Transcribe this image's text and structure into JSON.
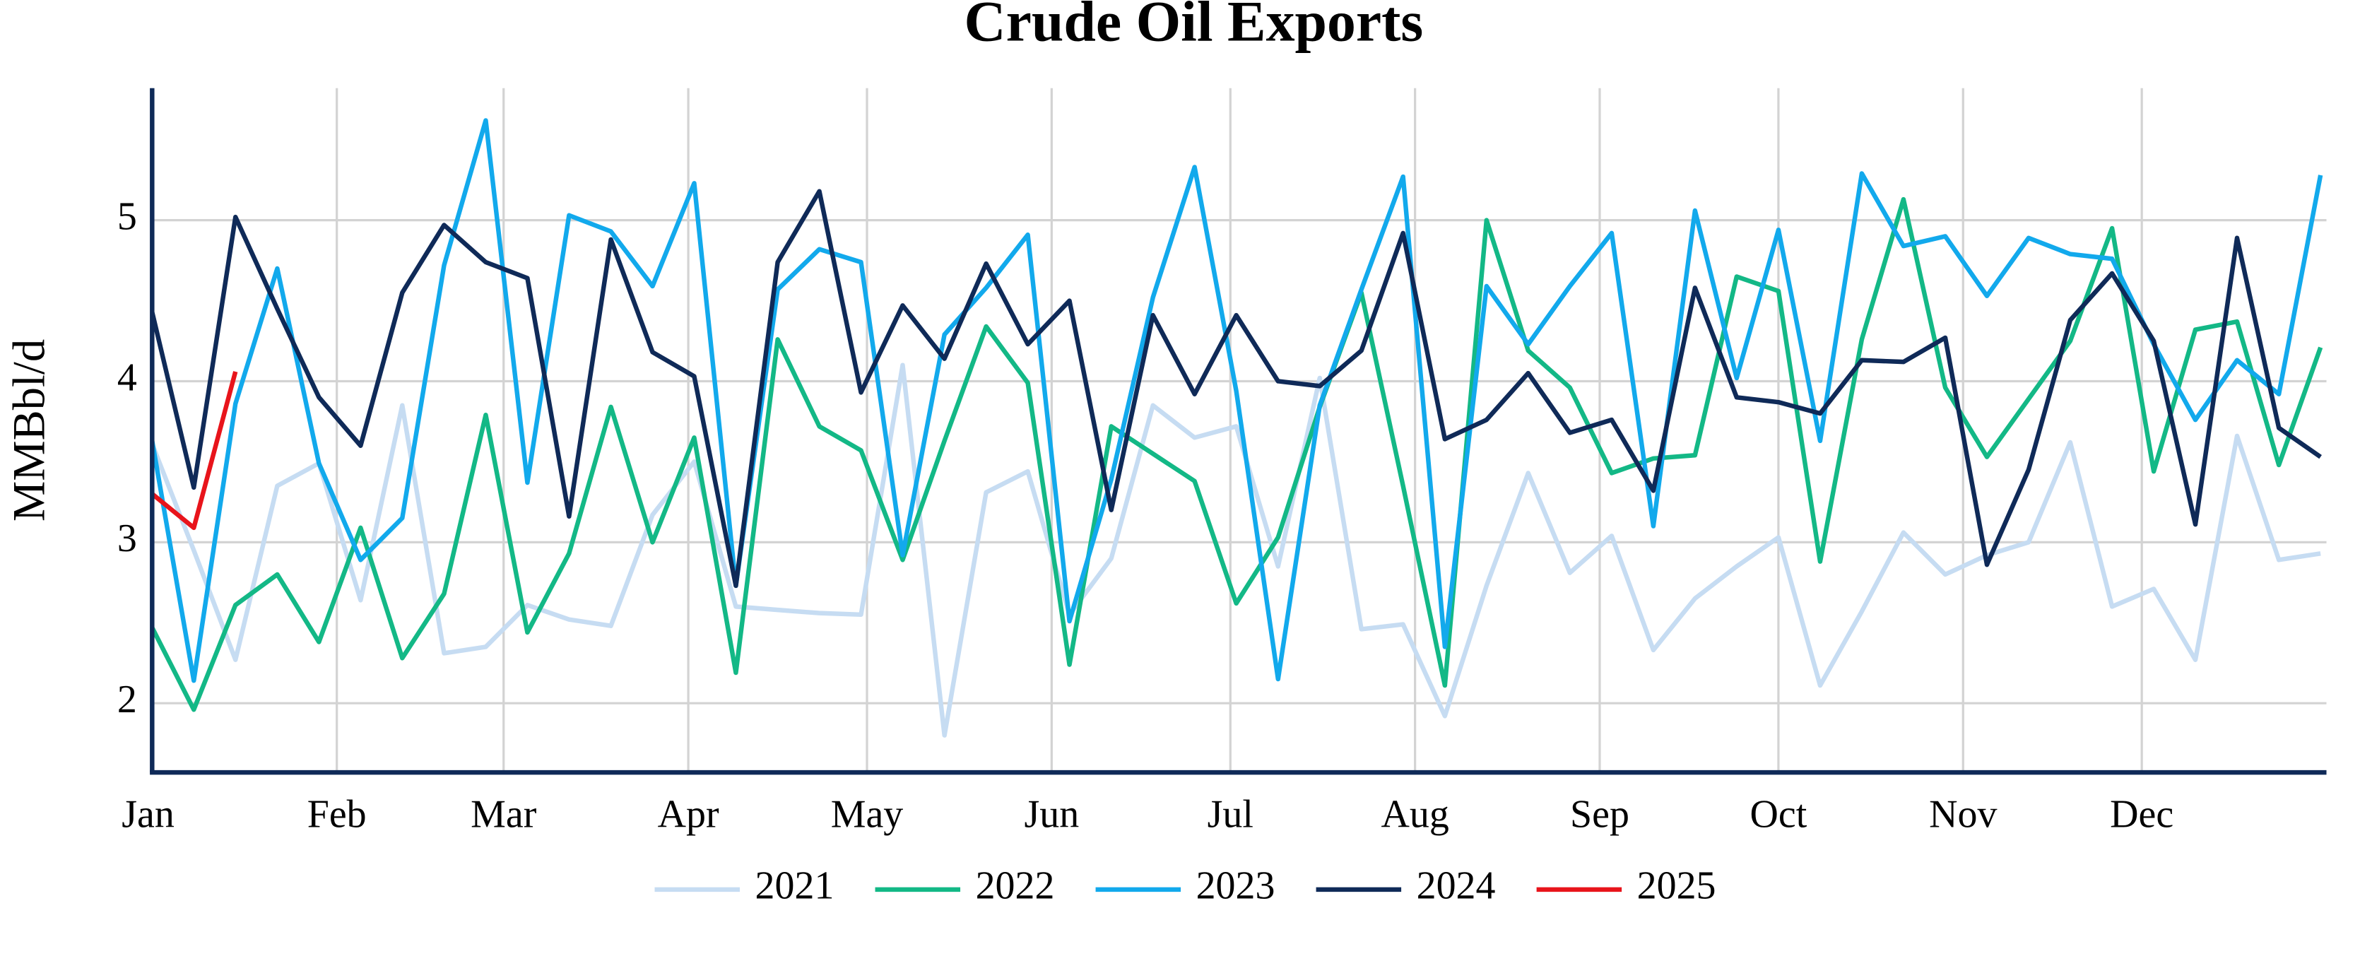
{
  "chart_data": {
    "type": "line",
    "title": "Crude Oil Exports",
    "y_label": "MMBbl/d",
    "x": [
      0,
      7,
      14,
      21,
      28,
      35,
      42,
      49,
      56,
      63,
      70,
      77,
      84,
      91,
      98,
      105,
      112,
      119,
      126,
      133,
      140,
      147,
      154,
      161,
      168,
      175,
      182,
      189,
      196,
      203,
      210,
      217,
      224,
      231,
      238,
      245,
      252,
      259,
      266,
      273,
      280,
      287,
      294,
      301,
      308,
      315,
      322,
      329,
      336,
      343,
      350,
      357,
      364
    ],
    "xlim": [
      0,
      365
    ],
    "xticks": [
      {
        "value": 0,
        "label": "Jan"
      },
      {
        "value": 31,
        "label": "Feb"
      },
      {
        "value": 59,
        "label": "Mar"
      },
      {
        "value": 90,
        "label": "Apr"
      },
      {
        "value": 120,
        "label": "May"
      },
      {
        "value": 151,
        "label": "Jun"
      },
      {
        "value": 181,
        "label": "Jul"
      },
      {
        "value": 212,
        "label": "Aug"
      },
      {
        "value": 243,
        "label": "Sep"
      },
      {
        "value": 273,
        "label": "Oct"
      },
      {
        "value": 304,
        "label": "Nov"
      },
      {
        "value": 334,
        "label": "Dec"
      }
    ],
    "ylim": [
      1.57,
      5.82
    ],
    "yticks": [
      2,
      3,
      4,
      5
    ],
    "grid": true,
    "legend": "bottom",
    "series": [
      {
        "name": "2021",
        "color": "#c6dcf2",
        "values": [
          3.61,
          2.95,
          2.27,
          3.35,
          3.49,
          2.64,
          3.85,
          2.31,
          2.35,
          2.61,
          2.52,
          2.48,
          3.17,
          3.5,
          2.6,
          2.58,
          2.56,
          2.55,
          4.1,
          1.8,
          3.31,
          3.44,
          2.55,
          2.9,
          3.85,
          3.65,
          3.72,
          2.85,
          4.02,
          2.46,
          2.49,
          1.92,
          2.73,
          3.43,
          2.81,
          3.04,
          2.33,
          2.65,
          2.85,
          3.03,
          2.11,
          2.57,
          3.06,
          2.8,
          2.92,
          3.0,
          3.62,
          2.6,
          2.71,
          2.27,
          3.66,
          2.89,
          2.93
        ]
      },
      {
        "name": "2022",
        "color": "#13b886",
        "values": [
          2.47,
          1.96,
          2.61,
          2.8,
          2.38,
          3.09,
          2.28,
          2.68,
          3.79,
          2.44,
          2.93,
          3.84,
          3.0,
          3.65,
          2.19,
          4.26,
          3.72,
          3.57,
          2.89,
          3.63,
          4.34,
          3.99,
          2.24,
          3.72,
          3.55,
          3.38,
          2.62,
          3.03,
          3.84,
          4.55,
          3.35,
          2.11,
          5.0,
          4.19,
          3.96,
          3.43,
          3.52,
          3.54,
          4.65,
          4.56,
          2.88,
          4.26,
          5.13,
          3.96,
          3.53,
          3.89,
          4.25,
          4.95,
          3.44,
          4.32,
          4.37,
          3.48,
          4.21
        ]
      },
      {
        "name": "2023",
        "color": "#12a9ec",
        "values": [
          3.63,
          2.14,
          3.86,
          4.7,
          3.49,
          2.89,
          3.15,
          4.72,
          5.62,
          3.37,
          5.03,
          4.93,
          4.59,
          5.23,
          2.73,
          4.57,
          4.82,
          4.74,
          2.92,
          4.29,
          4.58,
          4.91,
          2.51,
          3.39,
          4.52,
          5.33,
          3.94,
          2.15,
          3.85,
          4.57,
          5.27,
          2.35,
          4.59,
          4.23,
          4.59,
          4.92,
          3.1,
          5.06,
          4.02,
          4.94,
          3.63,
          5.29,
          4.84,
          4.9,
          4.53,
          4.89,
          4.79,
          4.76,
          4.23,
          3.76,
          4.13,
          3.92,
          5.28
        ]
      },
      {
        "name": "2024",
        "color": "#0f2a58",
        "values": [
          4.43,
          3.34,
          5.02,
          4.45,
          3.9,
          3.6,
          4.55,
          4.97,
          4.74,
          4.64,
          3.16,
          4.88,
          4.18,
          4.03,
          2.73,
          4.74,
          5.18,
          3.93,
          4.47,
          4.14,
          4.73,
          4.23,
          4.5,
          3.2,
          4.41,
          3.92,
          4.41,
          4.0,
          3.97,
          4.19,
          4.92,
          3.64,
          3.76,
          4.05,
          3.68,
          3.76,
          3.32,
          4.58,
          3.9,
          3.87,
          3.8,
          4.13,
          4.12,
          4.27,
          2.86,
          3.45,
          4.38,
          4.67,
          4.25,
          3.11,
          4.89,
          3.71,
          3.53
        ]
      },
      {
        "name": "2025",
        "color": "#e8141b",
        "values": [
          3.3,
          3.09,
          4.06,
          null,
          null,
          null,
          null,
          null,
          null,
          null,
          null,
          null,
          null,
          null,
          null,
          null,
          null,
          null,
          null,
          null,
          null,
          null,
          null,
          null,
          null,
          null,
          null,
          null,
          null,
          null,
          null,
          null,
          null,
          null,
          null,
          null,
          null,
          null,
          null,
          null,
          null,
          null,
          null,
          null,
          null,
          null,
          null,
          null,
          null,
          null,
          null,
          null,
          null
        ]
      }
    ]
  }
}
